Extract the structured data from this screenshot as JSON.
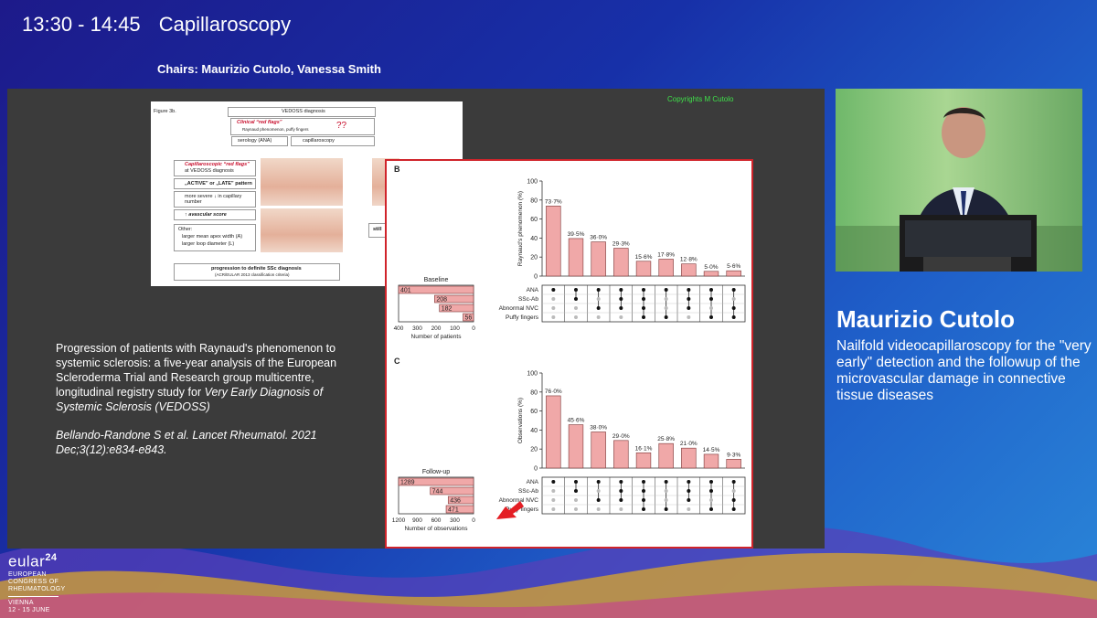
{
  "session": {
    "time": "13:30 - 14:45",
    "title": "Capillaroscopy",
    "chairs": "Chairs: Maurizio Cutolo, Vanessa Smith"
  },
  "slide": {
    "copyright": "Copyrights M Cutolo",
    "caption_main": "Progression of patients with Raynaud's phenomenon to systemic sclerosis: a five-year analysis of the European Scleroderma Trial and Research group multicentre, longitudinal registry study for",
    "caption_italic": "Very Early Diagnosis of Systemic Sclerosis (VEDOSS)",
    "citation": "Bellando-Randone S et al. Lancet Rheumatol. 2021 Dec;3(12):e834-e843.",
    "figure3b": {
      "label": "Figure 3b.",
      "vedoss": "VEDOSS diagnosis",
      "clinical": "Clinical “red flags”",
      "clinical_sub": "Raynaud phenomenon, puffy fingers",
      "qq": "??",
      "serology": "serology (ANA)",
      "capillaroscopy": "capillaroscopy",
      "cap_flags": "Capillaroscopic “red flags”",
      "cap_flags_sub": "at VEDOSS diagnosis",
      "active_late": "„ACTIVE” or „LATE” pattern",
      "more_severe": "more severe ↓ in capillary number",
      "avascular": "↑ avascular score",
      "other": "Other:",
      "other1": "larger mean apex width (A)",
      "other2": "larger loop diameter (L)",
      "progression": "progression to definite SSc diagnosis",
      "criteria": "(ACR/EULAR 2013 classification criteria)",
      "still": "still"
    }
  },
  "chart_data": [
    {
      "type": "bar",
      "panel": "B",
      "ylabel": "Raynaud's phenomenon (%)",
      "ylim": [
        0,
        100
      ],
      "yticks": [
        0,
        20,
        40,
        60,
        80,
        100
      ],
      "values": [
        73.7,
        39.5,
        36.0,
        29.3,
        15.6,
        17.8,
        12.8,
        5.0,
        5.6
      ],
      "labels": [
        "73·7%",
        "39·5%",
        "36·0%",
        "29·3%",
        "15·6%",
        "17·8%",
        "12·8%",
        "5·0%",
        "5·6%"
      ],
      "set_title": "Baseline",
      "set_names": [
        "ANA",
        "SSc-Ab",
        "Abnormal NVC",
        "Puffy fingers"
      ],
      "set_sizes": [
        401,
        208,
        182,
        56
      ],
      "set_ticks": [
        "400",
        "300",
        "200",
        "100",
        "0"
      ],
      "set_xlim": [
        0,
        400
      ],
      "set_xlabel": "Number of patients",
      "matrix": [
        [
          1,
          1,
          1,
          1,
          1,
          1,
          1,
          1,
          1
        ],
        [
          0,
          1,
          0,
          1,
          1,
          0,
          1,
          1,
          0
        ],
        [
          0,
          0,
          1,
          1,
          1,
          0,
          1,
          0,
          1
        ],
        [
          0,
          0,
          0,
          0,
          1,
          1,
          0,
          1,
          1
        ]
      ]
    },
    {
      "type": "bar",
      "panel": "C",
      "ylabel": "Observations (%)",
      "ylim": [
        0,
        100
      ],
      "yticks": [
        0,
        20,
        40,
        60,
        80,
        100
      ],
      "values": [
        76.0,
        45.6,
        38.0,
        29.0,
        16.1,
        25.8,
        21.0,
        14.5,
        9.3
      ],
      "labels": [
        "76·0%",
        "45·6%",
        "38·0%",
        "29·0%",
        "16·1%",
        "25·8%",
        "21·0%",
        "14·5%",
        "9·3%"
      ],
      "set_title": "Follow-up",
      "set_names": [
        "ANA",
        "SSc-Ab",
        "Abnormal NVC",
        "Puffy fingers"
      ],
      "set_sizes": [
        1289,
        744,
        436,
        471
      ],
      "set_ticks": [
        "1200",
        "900",
        "600",
        "300",
        "0"
      ],
      "set_xlim": [
        0,
        1289
      ],
      "set_xlabel": "Number of observations",
      "matrix": [
        [
          1,
          1,
          1,
          1,
          1,
          1,
          1,
          1,
          1
        ],
        [
          0,
          1,
          0,
          1,
          1,
          0,
          1,
          1,
          0
        ],
        [
          0,
          0,
          1,
          1,
          1,
          0,
          1,
          0,
          1
        ],
        [
          0,
          0,
          0,
          0,
          1,
          1,
          0,
          1,
          1
        ]
      ]
    }
  ],
  "speaker": {
    "name": "Maurizio Cutolo",
    "talk": "Nailfold videocapillaroscopy for the \"very early\" detection and the followup of the microvascular damage in connective tissue diseases"
  },
  "logo": {
    "brand": "eular",
    "year": "24",
    "line1": "EUROPEAN",
    "line2": "CONGRESS OF",
    "line3": "RHEUMATOLOGY",
    "city": "VIENNA",
    "dates": "12 - 15 JUNE"
  },
  "colors": {
    "bar": "#f0a8a8",
    "bar_stroke": "#7a3434",
    "frame": "#d0242b",
    "copyright": "#3fe04a",
    "arrow": "#e41e24"
  }
}
